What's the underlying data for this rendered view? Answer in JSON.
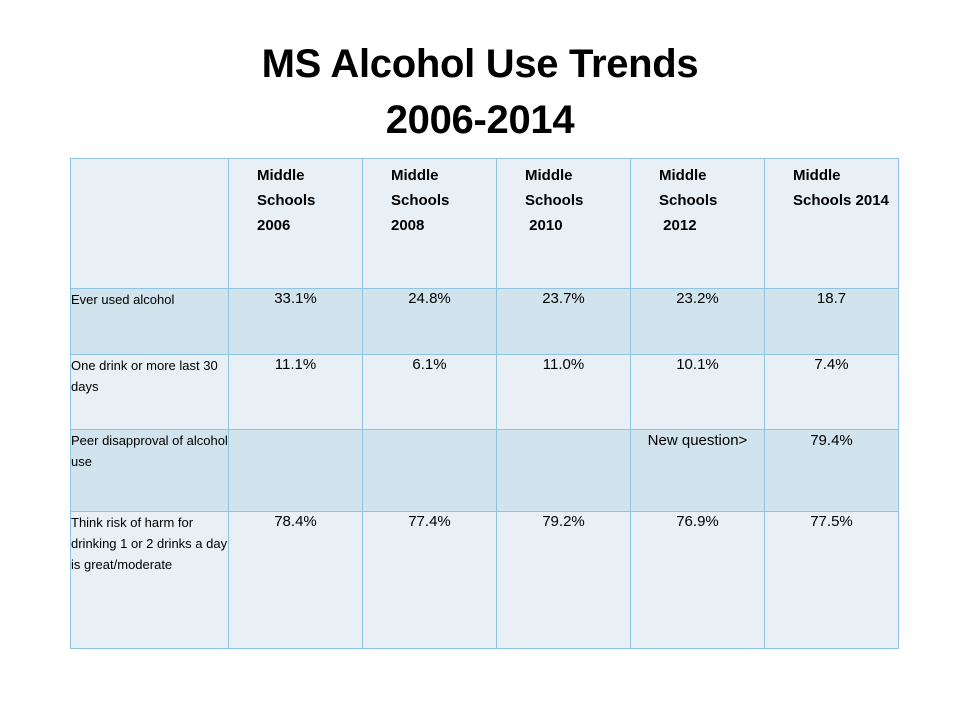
{
  "slide": {
    "title_line1": "MS Alcohol Use Trends",
    "title_line2": "2006-2014"
  },
  "table": {
    "header": {
      "corner": "",
      "columns": [
        [
          "Middle",
          "Schools",
          "2006"
        ],
        [
          "Middle",
          "Schools",
          "2008"
        ],
        [
          "Middle",
          "Schools",
          " 2010"
        ],
        [
          "Middle",
          "Schools",
          " 2012"
        ],
        [
          "Middle",
          "Schools 2014"
        ]
      ]
    },
    "rows": [
      {
        "label": "Ever used alcohol",
        "values": [
          "33.1%",
          "24.8%",
          "23.7%",
          "23.2%",
          "18.7"
        ]
      },
      {
        "label": "One drink or more last 30 days",
        "values": [
          "11.1%",
          "6.1%",
          "11.0%",
          "10.1%",
          "7.4%"
        ]
      },
      {
        "label": "Peer disapproval of alcohol use",
        "values": [
          "",
          "",
          "",
          "New question>",
          "79.4%"
        ]
      },
      {
        "label": "Think risk of harm for drinking 1 or 2 drinks a day is great/moderate",
        "values": [
          "78.4%",
          "77.4%",
          "79.2%",
          "76.9%",
          "77.5%"
        ]
      }
    ]
  },
  "colors": {
    "border": "#8fc3e2",
    "band_dark": "#d1e3ec",
    "band_light": "#e8eff5"
  }
}
